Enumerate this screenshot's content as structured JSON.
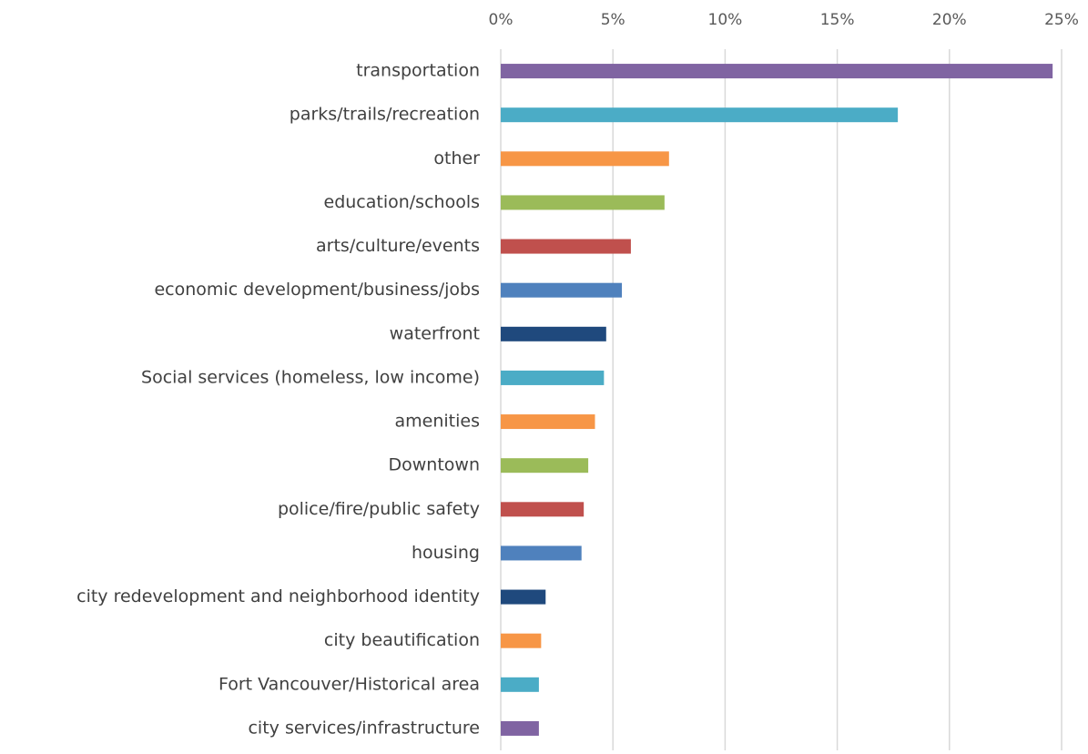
{
  "chart_data": {
    "type": "bar",
    "orientation": "horizontal",
    "categories": [
      "transportation",
      "parks/trails/recreation",
      "other",
      "education/schools",
      "arts/culture/events",
      "economic development/business/jobs",
      "waterfront",
      "Social services (homeless, low income)",
      "amenities",
      "Downtown",
      "police/fire/public safety",
      "housing",
      "city redevelopment and neighborhood identity",
      "city beautification",
      "Fort Vancouver/Historical area",
      "city services/infrastructure"
    ],
    "values": [
      24.6,
      17.7,
      7.5,
      7.3,
      5.8,
      5.4,
      4.7,
      4.6,
      4.2,
      3.9,
      3.7,
      3.6,
      2.0,
      1.8,
      1.7,
      1.7
    ],
    "colors": [
      "#8064a2",
      "#4bacc6",
      "#f79646",
      "#9bbb59",
      "#c0504d",
      "#4f81bd",
      "#1f497d",
      "#4bacc6",
      "#f79646",
      "#9bbb59",
      "#c0504d",
      "#4f81bd",
      "#1f497d",
      "#f79646",
      "#4bacc6",
      "#8064a2"
    ],
    "xlim": [
      0,
      25
    ],
    "xticks": [
      {
        "value": 0,
        "label": "0%"
      },
      {
        "value": 5,
        "label": "5%"
      },
      {
        "value": 10,
        "label": "10%"
      },
      {
        "value": 15,
        "label": "15%"
      },
      {
        "value": 20,
        "label": "20%"
      },
      {
        "value": 25,
        "label": "25%"
      }
    ],
    "grid": true
  }
}
